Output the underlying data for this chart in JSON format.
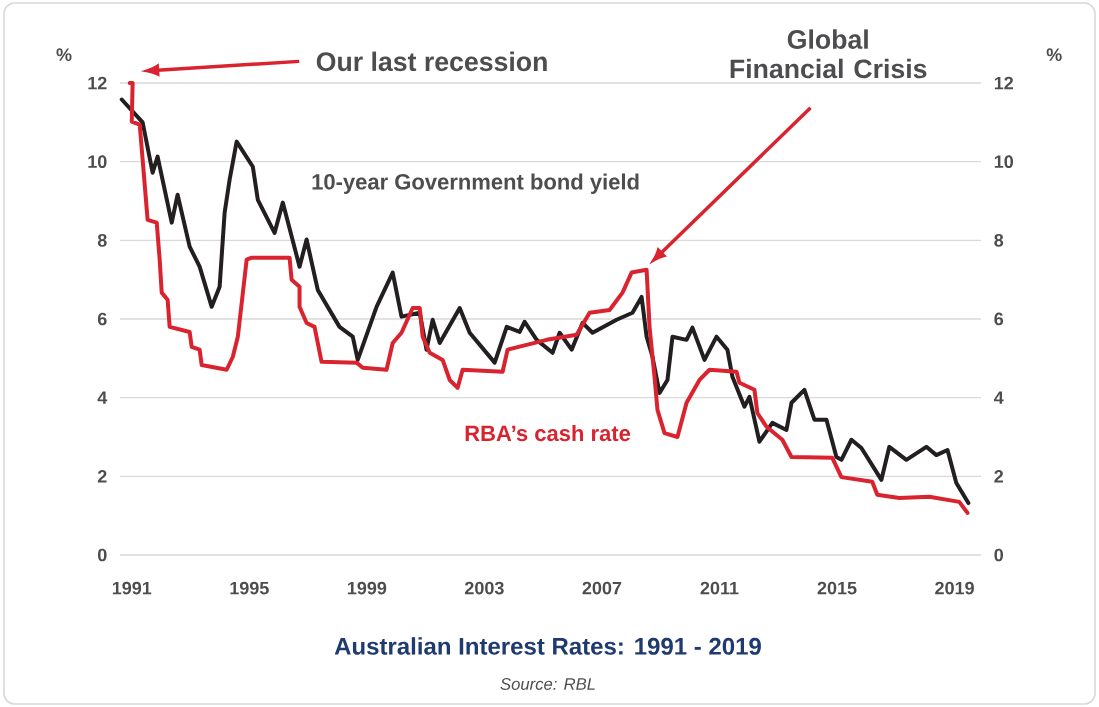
{
  "chart_data": {
    "type": "line",
    "title": "Australian Interest Rates: 1991 - 2019",
    "ylabel": "%",
    "y2label": "%",
    "annotations": [
      "Our last recession",
      "Global Financial Crisis",
      "Source: RBL"
    ],
    "xlim": [
      1990.6,
      2019.9
    ],
    "xticks": [
      1991,
      1995,
      1999,
      2003,
      2007,
      2011,
      2015,
      2019
    ],
    "ylim": [
      0,
      12
    ],
    "yticks": [
      0,
      2,
      4,
      6,
      8,
      10,
      12
    ],
    "y2lim": [
      0,
      12
    ],
    "y2ticks": [
      0,
      2,
      4,
      6,
      8,
      10,
      12
    ],
    "grid": "y",
    "series": [
      {
        "name": "10-year Government bond yield",
        "color": "#231f20",
        "x": [
          1990.66,
          1991.37,
          1991.71,
          1991.88,
          1992.36,
          1992.56,
          1992.97,
          1993.31,
          1993.72,
          1993.99,
          1994.16,
          1994.33,
          1994.57,
          1995.12,
          1995.29,
          1995.86,
          1996.14,
          1996.71,
          1996.95,
          1997.33,
          1998.07,
          1998.52,
          1998.69,
          1999.33,
          1999.88,
          2000.18,
          2000.8,
          2001.03,
          2001.24,
          2001.48,
          2002.16,
          2002.5,
          2003.35,
          2003.76,
          2004.2,
          2004.37,
          2004.78,
          2005.32,
          2005.56,
          2005.97,
          2006.34,
          2006.68,
          2007.5,
          2008.04,
          2008.35,
          2008.52,
          2008.72,
          2008.96,
          2009.23,
          2009.4,
          2009.88,
          2010.08,
          2010.49,
          2010.9,
          2011.27,
          2011.44,
          2011.85,
          2012.02,
          2012.36,
          2012.8,
          2013.28,
          2013.45,
          2013.89,
          2014.23,
          2014.64,
          2014.98,
          2015.15,
          2015.49,
          2015.83,
          2016.51,
          2016.78,
          2017.36,
          2018.04,
          2018.38,
          2018.76,
          2019.06,
          2019.47
        ],
        "values": [
          11.58,
          11.0,
          9.72,
          10.13,
          8.45,
          9.16,
          7.84,
          7.33,
          6.31,
          6.82,
          8.7,
          9.54,
          10.51,
          9.87,
          9.03,
          8.19,
          8.96,
          7.33,
          8.02,
          6.74,
          5.8,
          5.55,
          4.96,
          6.31,
          7.18,
          6.06,
          6.16,
          5.22,
          5.98,
          5.39,
          6.28,
          5.65,
          4.89,
          5.8,
          5.67,
          5.93,
          5.47,
          5.14,
          5.65,
          5.22,
          5.9,
          5.65,
          5.98,
          6.16,
          6.56,
          5.55,
          5.04,
          4.12,
          4.45,
          5.55,
          5.47,
          5.78,
          4.96,
          5.55,
          5.22,
          4.53,
          3.77,
          4.02,
          2.88,
          3.36,
          3.18,
          3.87,
          4.2,
          3.44,
          3.44,
          2.49,
          2.42,
          2.93,
          2.72,
          1.91,
          2.75,
          2.42,
          2.75,
          2.54,
          2.67,
          1.83,
          1.32
        ]
      },
      {
        "name": "RBA’s cash rate",
        "color": "#d9232e",
        "x": [
          1990.93,
          1991.03,
          1991.0,
          1991.27,
          1991.37,
          1991.54,
          1991.85,
          1991.95,
          1992.02,
          1992.22,
          1992.29,
          1992.97,
          1993.04,
          1993.31,
          1993.38,
          1994.23,
          1994.44,
          1994.61,
          1994.91,
          1995.08,
          1996.37,
          1996.44,
          1996.71,
          1996.71,
          1996.95,
          1997.22,
          1997.46,
          1998.65,
          1998.86,
          1999.67,
          1999.88,
          2000.18,
          2000.56,
          2000.8,
          2000.9,
          2001.14,
          2001.58,
          2001.82,
          2002.09,
          2002.26,
          2003.62,
          2003.79,
          2005.12,
          2006.14,
          2006.58,
          2007.26,
          2007.7,
          2008.01,
          2008.52,
          2008.62,
          2008.79,
          2008.89,
          2009.13,
          2009.57,
          2009.88,
          2010.32,
          2010.66,
          2011.58,
          2011.68,
          2012.19,
          2012.29,
          2012.6,
          2013.14,
          2013.45,
          2014.84,
          2015.15,
          2016.2,
          2016.37,
          2017.12,
          2018.14,
          2019.16,
          2019.44
        ],
        "values": [
          12.0,
          12.0,
          11.02,
          10.94,
          10.05,
          8.52,
          8.45,
          7.51,
          6.67,
          6.49,
          5.8,
          5.67,
          5.29,
          5.22,
          4.83,
          4.71,
          5.04,
          5.55,
          7.51,
          7.56,
          7.56,
          7.0,
          6.82,
          6.31,
          5.9,
          5.8,
          4.91,
          4.89,
          4.76,
          4.71,
          5.39,
          5.65,
          6.28,
          6.28,
          5.55,
          5.14,
          4.96,
          4.45,
          4.25,
          4.71,
          4.66,
          5.22,
          5.47,
          5.6,
          6.16,
          6.23,
          6.67,
          7.18,
          7.25,
          5.8,
          4.53,
          3.69,
          3.1,
          3.0,
          3.87,
          4.45,
          4.71,
          4.66,
          4.38,
          4.2,
          3.61,
          3.26,
          2.93,
          2.49,
          2.47,
          1.98,
          1.86,
          1.53,
          1.45,
          1.48,
          1.35,
          1.07
        ]
      }
    ]
  }
}
